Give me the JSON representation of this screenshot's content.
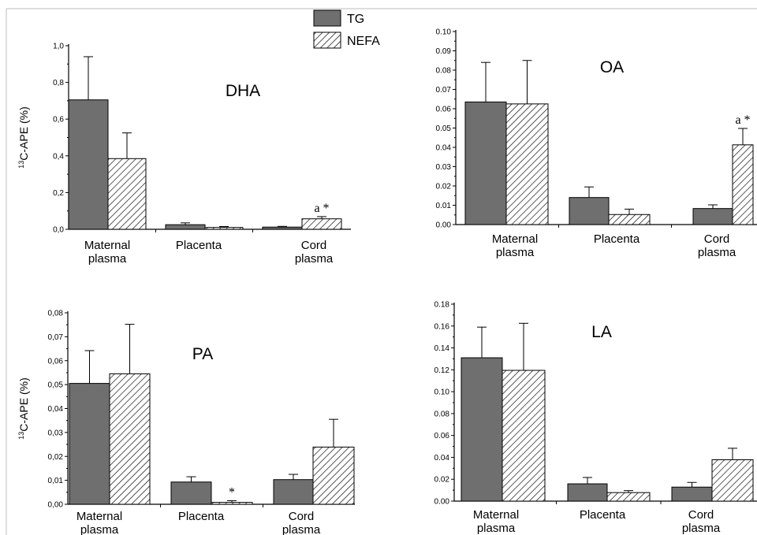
{
  "legend": [
    {
      "label": "TG",
      "fill": "#6f6f6f"
    },
    {
      "label": "NEFA",
      "fill": "hatch"
    }
  ],
  "chart_data": [
    {
      "type": "bar",
      "title": "DHA",
      "ylabel": "13C-APE (%)",
      "ylabel_base": "C-APE (%)",
      "ylabel_sup": "13",
      "ylim": [
        0,
        1.0
      ],
      "yticks": [
        "0,0",
        "0,2",
        "0,4",
        "0,6",
        "0,8",
        "1,0"
      ],
      "categories": [
        [
          "Maternal",
          "plasma"
        ],
        [
          "Placenta"
        ],
        [
          "Cord",
          "plasma"
        ]
      ],
      "series": [
        {
          "name": "TG",
          "values": [
            0.705,
            0.025,
            0.012
          ],
          "errors": [
            0.235,
            0.01,
            0.004
          ]
        },
        {
          "name": "NEFA",
          "values": [
            0.385,
            0.01,
            0.057
          ],
          "errors": [
            0.14,
            0.005,
            0.012
          ]
        }
      ],
      "annotations": [
        {
          "text": "a *",
          "series": 1,
          "category": 2
        }
      ]
    },
    {
      "type": "bar",
      "title": "OA",
      "ylabel": "",
      "ylim": [
        0,
        0.1
      ],
      "yticks": [
        "0.00",
        "0.01",
        "0.02",
        "0.03",
        "0.04",
        "0.05",
        "0.06",
        "0.07",
        "0.08",
        "0.09",
        "0.10"
      ],
      "categories": [
        [
          "Maternal",
          "plasma"
        ],
        [
          "Placenta"
        ],
        [
          "Cord",
          "plasma"
        ]
      ],
      "series": [
        {
          "name": "TG",
          "values": [
            0.0635,
            0.014,
            0.0083
          ],
          "errors": [
            0.0205,
            0.0055,
            0.0019
          ]
        },
        {
          "name": "NEFA",
          "values": [
            0.0625,
            0.0052,
            0.0413
          ],
          "errors": [
            0.0225,
            0.0028,
            0.0085
          ]
        }
      ],
      "annotations": [
        {
          "text": "a *",
          "series": 1,
          "category": 2
        }
      ]
    },
    {
      "type": "bar",
      "title": "PA",
      "ylabel": "13C-APE (%)",
      "ylabel_base": "C-APE (%)",
      "ylabel_sup": "13",
      "ylim": [
        0,
        0.08
      ],
      "yticks": [
        "0,00",
        "0,01",
        "0,02",
        "0,03",
        "0,04",
        "0,05",
        "0,06",
        "0,07",
        "0,08"
      ],
      "categories": [
        [
          "Maternal",
          "plasma"
        ],
        [
          "Placenta"
        ],
        [
          "Cord",
          "plasma"
        ]
      ],
      "series": [
        {
          "name": "TG",
          "values": [
            0.0505,
            0.0093,
            0.0103
          ],
          "errors": [
            0.0137,
            0.0022,
            0.0022
          ]
        },
        {
          "name": "NEFA",
          "values": [
            0.0545,
            0.0008,
            0.0239
          ],
          "errors": [
            0.0207,
            0.0007,
            0.0116
          ]
        }
      ],
      "annotations": [
        {
          "text": "*",
          "series": 1,
          "category": 1
        }
      ]
    },
    {
      "type": "bar",
      "title": "LA",
      "ylabel": "",
      "ylim": [
        0,
        0.18
      ],
      "yticks": [
        "0.00",
        "0.02",
        "0.04",
        "0.06",
        "0.08",
        "0.10",
        "0.12",
        "0.14",
        "0.16",
        "0.18"
      ],
      "categories": [
        [
          "Maternal",
          "plasma"
        ],
        [
          "Placenta"
        ],
        [
          "Cord",
          "plasma"
        ]
      ],
      "series": [
        {
          "name": "TG",
          "values": [
            0.131,
            0.0158,
            0.0128
          ],
          "errors": [
            0.028,
            0.0058,
            0.0043
          ]
        },
        {
          "name": "NEFA",
          "values": [
            0.1195,
            0.0078,
            0.0378
          ],
          "errors": [
            0.043,
            0.0018,
            0.0105
          ]
        }
      ],
      "annotations": []
    }
  ]
}
